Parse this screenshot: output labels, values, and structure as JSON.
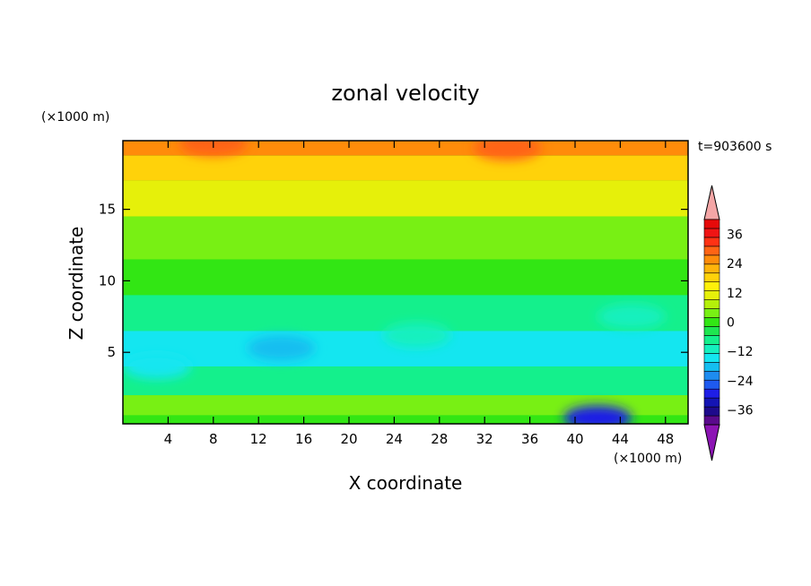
{
  "chart_data": {
    "type": "heatmap",
    "title": "zonal velocity",
    "xlabel": "X coordinate",
    "ylabel": "Z coordinate",
    "x_unit": "(×1000 m)",
    "y_unit": "(×1000 m)",
    "time_label": "t=903600 s",
    "xlim": [
      0,
      50
    ],
    "ylim": [
      0,
      19.8
    ],
    "x_ticks": [
      4,
      8,
      12,
      16,
      20,
      24,
      28,
      32,
      36,
      40,
      44,
      48
    ],
    "y_ticks": [
      5,
      10,
      15
    ],
    "colorbar": {
      "levels": [
        -42,
        -39,
        -36,
        -33,
        -30,
        -27,
        -24,
        -21,
        -18,
        -15,
        -12,
        -9,
        -6,
        -3,
        0,
        3,
        6,
        9,
        12,
        15,
        18,
        21,
        24,
        27,
        30,
        33,
        36,
        39,
        42
      ],
      "labels": [
        "36",
        "24",
        "12",
        "0",
        "−12",
        "−24",
        "−36"
      ],
      "label_values": [
        36,
        24,
        12,
        0,
        -12,
        -24,
        -36
      ],
      "colors": [
        "#5a0a8c",
        "#1e0a8c",
        "#1414b4",
        "#1e1ee6",
        "#1e5af0",
        "#1e8cf0",
        "#14bef0",
        "#14e6f0",
        "#14f0be",
        "#14f08c",
        "#1ee650",
        "#32e614",
        "#78f014",
        "#b4f00a",
        "#e6f00a",
        "#fff00a",
        "#ffd20a",
        "#ffb40a",
        "#ff8c0a",
        "#ff6414",
        "#ff3214",
        "#f01414",
        "#e60a0a"
      ],
      "over_color": "#f4a6a6",
      "under_color": "#8c14b4"
    },
    "field_description_rows": [
      {
        "z": 19.5,
        "value": 22
      },
      {
        "z": 18,
        "value": 17
      },
      {
        "z": 16,
        "value": 9
      },
      {
        "z": 13,
        "value": 2
      },
      {
        "z": 10,
        "value": 0
      },
      {
        "z": 8,
        "value": -5
      },
      {
        "z": 5,
        "value": -11
      },
      {
        "z": 3,
        "value": -7
      },
      {
        "z": 1,
        "value": 3
      },
      {
        "z": 0.2,
        "value": 0
      }
    ],
    "features": [
      {
        "x": 14,
        "z": 5.3,
        "value": -17
      },
      {
        "x": 26,
        "z": 6.2,
        "value": -10
      },
      {
        "x": 34,
        "z": 19.3,
        "value": 24
      },
      {
        "x": 42,
        "z": 0.4,
        "value": -24
      },
      {
        "x": 8,
        "z": 19.6,
        "value": 24
      },
      {
        "x": 3,
        "z": 4.0,
        "value": -12
      },
      {
        "x": 45,
        "z": 7.5,
        "value": -10
      }
    ]
  }
}
